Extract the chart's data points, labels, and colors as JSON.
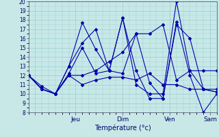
{
  "xlabel": "Température (°c)",
  "background_color": "#c8e8e8",
  "line_color": "#0000aa",
  "grid_color": "#99cccc",
  "axis_label_color": "#000066",
  "tick_color": "#444466",
  "yticks": [
    8,
    9,
    10,
    11,
    12,
    13,
    14,
    15,
    16,
    17,
    18,
    19,
    20
  ],
  "xtick_positions": [
    0.5,
    3.5,
    7.0,
    10.5,
    13.5
  ],
  "xtick_labels": [
    "",
    "Jeu",
    "Dim",
    "Ven",
    "Sam"
  ],
  "xmin": 0,
  "xmax": 14,
  "ymin": 8,
  "ymax": 20,
  "lines": [
    {
      "x": [
        0,
        1,
        2,
        3,
        4,
        5,
        6,
        7,
        8,
        9,
        10,
        11,
        12,
        13,
        14
      ],
      "y": [
        12,
        10.5,
        10.0,
        12.2,
        15.0,
        12.2,
        12.5,
        18.2,
        12.5,
        9.5,
        9.5,
        17.5,
        16.0,
        10.5,
        10.2
      ]
    },
    {
      "x": [
        0,
        1,
        2,
        3,
        4,
        5,
        6,
        7,
        8,
        9,
        10,
        11,
        12,
        13,
        14
      ],
      "y": [
        12,
        10.8,
        10.0,
        13.0,
        15.5,
        17.0,
        12.5,
        12.2,
        16.5,
        11.2,
        9.5,
        17.8,
        12.0,
        8.0,
        10.0
      ]
    },
    {
      "x": [
        0,
        1,
        2,
        3,
        4,
        5,
        6,
        7,
        8,
        9,
        10,
        11,
        12,
        13,
        14
      ],
      "y": [
        12,
        10.5,
        10.0,
        13.0,
        17.7,
        14.8,
        12.5,
        18.2,
        11.0,
        10.0,
        10.0,
        20.0,
        12.5,
        10.5,
        10.5
      ]
    },
    {
      "x": [
        0,
        1,
        2,
        3,
        4,
        5,
        6,
        7,
        8,
        9,
        10,
        11,
        12,
        13,
        14
      ],
      "y": [
        12,
        10.5,
        10.0,
        12.0,
        11.0,
        11.5,
        11.8,
        11.8,
        11.5,
        12.2,
        11.0,
        11.0,
        10.5,
        10.5,
        10.2
      ]
    },
    {
      "x": [
        0,
        1,
        2,
        3,
        4,
        5,
        6,
        7,
        8,
        9,
        10,
        11,
        12,
        13,
        14
      ],
      "y": [
        12,
        10.5,
        10.0,
        12.0,
        12.0,
        12.5,
        13.5,
        14.5,
        16.5,
        16.5,
        17.5,
        11.5,
        12.5,
        12.5,
        12.5
      ]
    }
  ]
}
